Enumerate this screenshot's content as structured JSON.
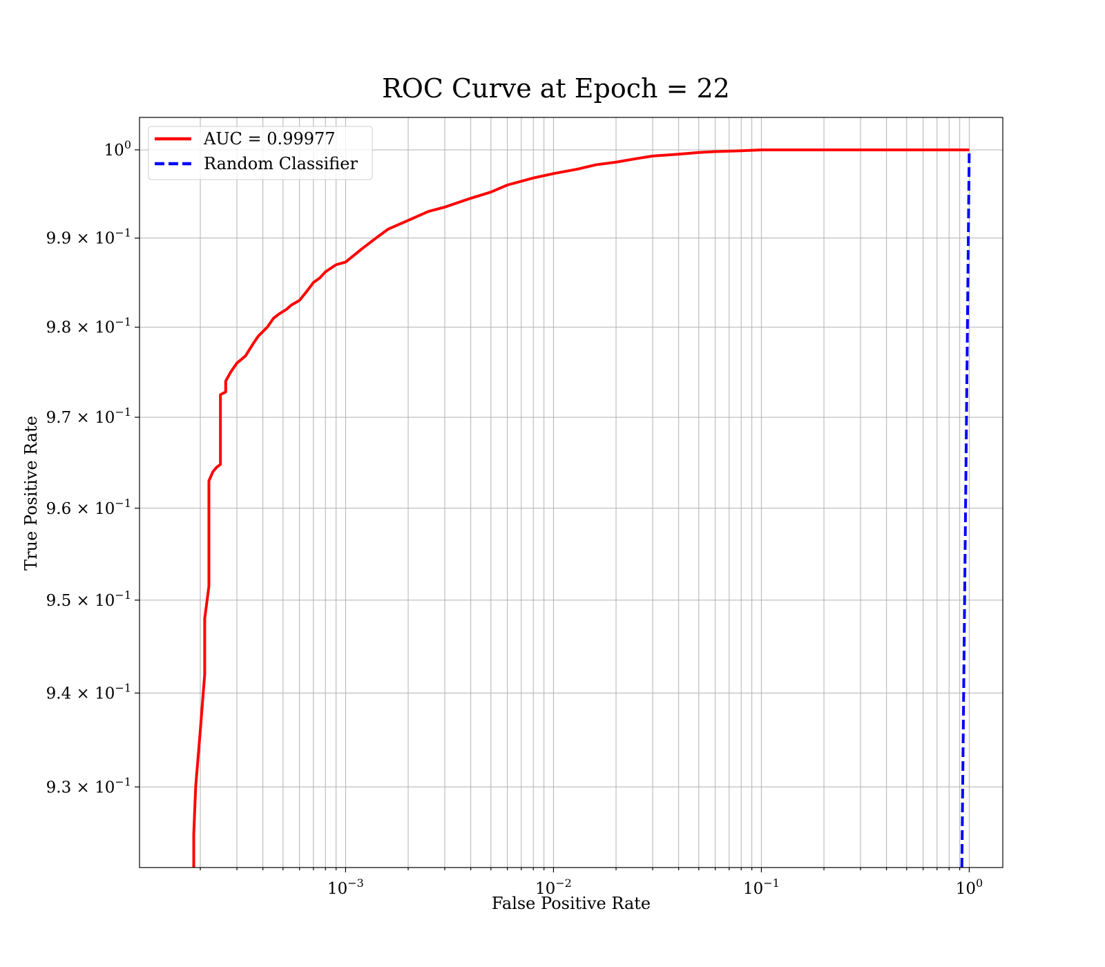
{
  "chart_data": {
    "type": "line",
    "title": "ROC Curve at Epoch = 22",
    "xlabel": "False Positive Rate",
    "ylabel": "True Positive Rate",
    "xscale": "log",
    "yscale": "log",
    "xlim": [
      0.000102,
      1.45
    ],
    "ylim": [
      0.9215,
      1.0037
    ],
    "grid": true,
    "legend_position": "top-left",
    "x_ticks": [
      {
        "value": 0.001,
        "base": "10",
        "exp": "−3"
      },
      {
        "value": 0.01,
        "base": "10",
        "exp": "−2"
      },
      {
        "value": 0.1,
        "base": "10",
        "exp": "−1"
      },
      {
        "value": 1,
        "base": "10",
        "exp": "0"
      }
    ],
    "y_ticks": [
      {
        "value": 1.0,
        "mantissa": "",
        "base": "10",
        "exp": "0"
      },
      {
        "value": 0.99,
        "mantissa": "9.9",
        "base": "10",
        "exp": "−1"
      },
      {
        "value": 0.98,
        "mantissa": "9.8",
        "base": "10",
        "exp": "−1"
      },
      {
        "value": 0.97,
        "mantissa": "9.7",
        "base": "10",
        "exp": "−1"
      },
      {
        "value": 0.96,
        "mantissa": "9.6",
        "base": "10",
        "exp": "−1"
      },
      {
        "value": 0.95,
        "mantissa": "9.5",
        "base": "10",
        "exp": "−1"
      },
      {
        "value": 0.94,
        "mantissa": "9.4",
        "base": "10",
        "exp": "−1"
      },
      {
        "value": 0.93,
        "mantissa": "9.3",
        "base": "10",
        "exp": "−1"
      }
    ],
    "series": [
      {
        "name": "AUC = 0.99977",
        "color": "#ff0000",
        "style": "solid",
        "x": [
          0.000186,
          0.000186,
          0.00019,
          0.0002,
          0.00021,
          0.00021,
          0.00022,
          0.00022,
          0.00023,
          0.00024,
          0.00025,
          0.00025,
          0.000265,
          0.000265,
          0.00028,
          0.0003,
          0.00033,
          0.00036,
          0.00038,
          0.00042,
          0.00045,
          0.00048,
          0.00052,
          0.00055,
          0.0006,
          0.00065,
          0.0007,
          0.00075,
          0.0008,
          0.0009,
          0.001,
          0.0012,
          0.0014,
          0.0016,
          0.002,
          0.0025,
          0.003,
          0.004,
          0.005,
          0.006,
          0.008,
          0.01,
          0.013,
          0.016,
          0.02,
          0.025,
          0.03,
          0.04,
          0.05,
          0.06,
          0.08,
          0.1,
          0.2,
          0.5,
          1.0
        ],
        "y": [
          0.9215,
          0.925,
          0.93,
          0.936,
          0.942,
          0.948,
          0.9515,
          0.963,
          0.964,
          0.9645,
          0.9648,
          0.9725,
          0.9728,
          0.974,
          0.975,
          0.976,
          0.9768,
          0.9782,
          0.979,
          0.98,
          0.981,
          0.9815,
          0.982,
          0.9825,
          0.983,
          0.984,
          0.985,
          0.9855,
          0.9862,
          0.987,
          0.9873,
          0.9888,
          0.99,
          0.991,
          0.992,
          0.993,
          0.9935,
          0.9945,
          0.9952,
          0.996,
          0.9968,
          0.9973,
          0.9978,
          0.9983,
          0.9986,
          0.999,
          0.9993,
          0.9995,
          0.9997,
          0.9998,
          0.9999,
          1.0,
          1.0,
          1.0,
          1.0
        ]
      },
      {
        "name": "Random Classifier",
        "color": "#0000ff",
        "style": "dashed",
        "x": [
          0.9215,
          1.0
        ],
        "y": [
          0.9215,
          1.0
        ]
      }
    ]
  }
}
